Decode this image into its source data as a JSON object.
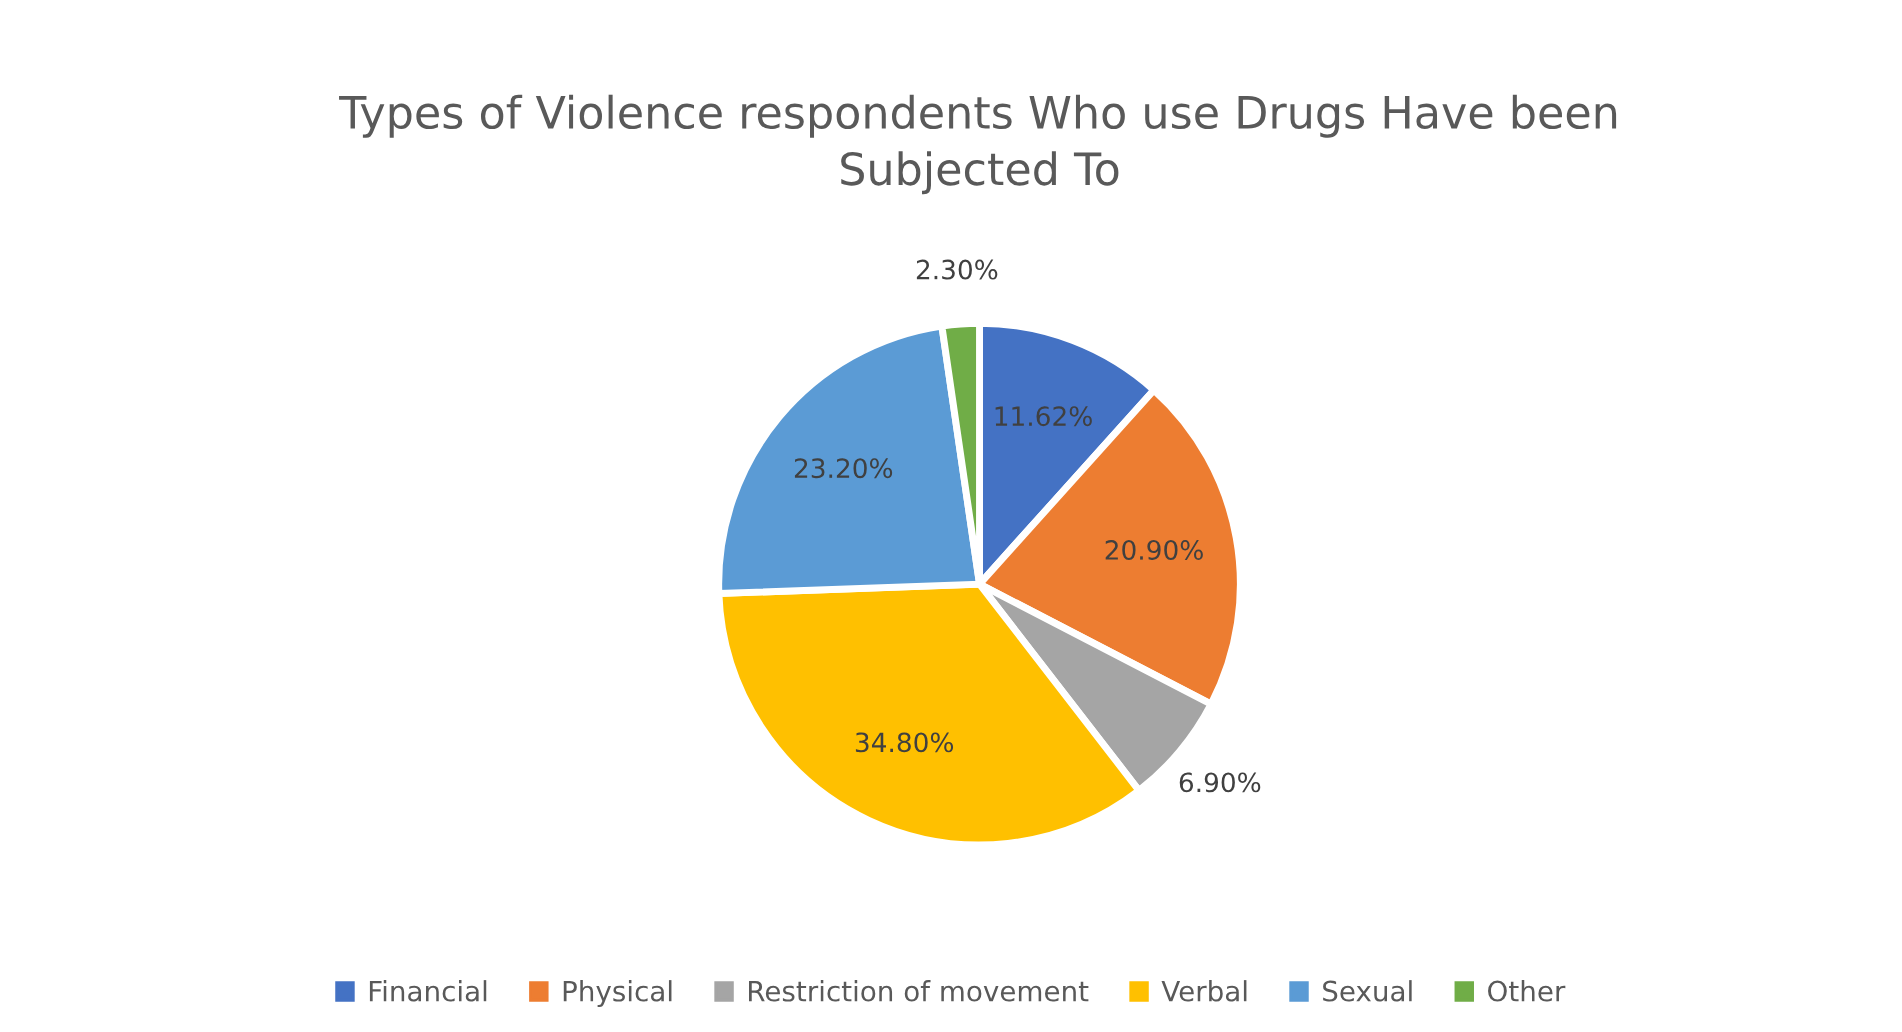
{
  "chart_data": {
    "type": "pie",
    "title": "Types of Violence respondents Who use Drugs Have been\nSubjected To",
    "categories": [
      "Financial",
      "Physical",
      "Restriction of movement",
      "Verbal",
      "Sexual",
      "Other"
    ],
    "values": [
      11.62,
      20.9,
      6.9,
      34.8,
      23.2,
      2.3
    ],
    "value_labels": [
      "11.62%",
      "20.90%",
      "6.90%",
      "34.80%",
      "23.20%",
      "2.30%"
    ],
    "colors": [
      "#4472c4",
      "#ed7d31",
      "#a5a5a5",
      "#ffc000",
      "#5b9bd5",
      "#70ad47"
    ],
    "legend": "bottom"
  }
}
